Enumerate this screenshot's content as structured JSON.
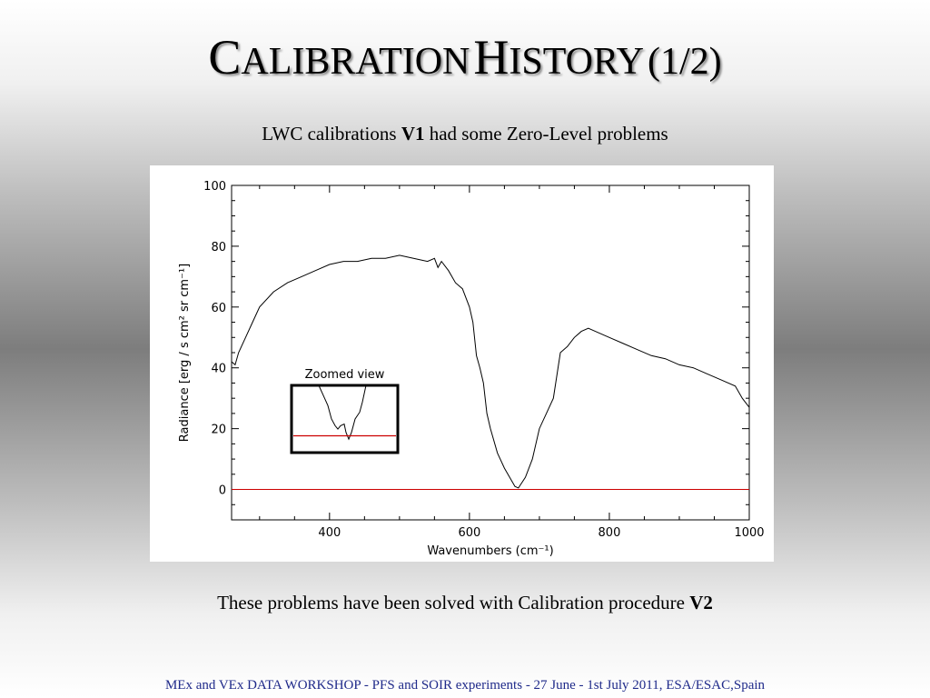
{
  "slide": {
    "title_part1_cap": "C",
    "title_part1_rest": "ALIBRATION",
    "title_part2_cap": "H",
    "title_part2_rest": "ISTORY",
    "title_page": "(1/2)",
    "subtitle_pre": "LWC calibrations",
    "subtitle_bold": "V1",
    "subtitle_post": "had some Zero-Level problems",
    "conclusion_pre": "These problems have been solved with Calibration procedure",
    "conclusion_bold": "V2",
    "footer": "MEx and VEx DATA WORKSHOP - PFS and SOIR experiments - 27 June - 1st July 2011, ESA/ESAC,Spain"
  },
  "chart_data": {
    "type": "line",
    "xlabel": "Wavenumbers (cm⁻¹)",
    "ylabel": "Radiance [erg / s cm² sr cm⁻¹]",
    "xlim": [
      260,
      1000
    ],
    "ylim": [
      -10,
      100
    ],
    "x_ticks": [
      400,
      600,
      800,
      1000
    ],
    "y_ticks": [
      0,
      20,
      40,
      60,
      80,
      100
    ],
    "grid": false,
    "series": [
      {
        "color": "#000000",
        "x": [
          260,
          265,
          270,
          280,
          290,
          300,
          320,
          340,
          360,
          380,
          400,
          420,
          440,
          460,
          480,
          500,
          520,
          540,
          550,
          555,
          560,
          570,
          580,
          590,
          600,
          605,
          610,
          615,
          620,
          625,
          630,
          640,
          650,
          660,
          665,
          670,
          680,
          690,
          700,
          710,
          720,
          730,
          740,
          750,
          760,
          770,
          780,
          800,
          820,
          840,
          860,
          880,
          900,
          920,
          940,
          960,
          980,
          990,
          1000
        ],
        "y": [
          42,
          41,
          45,
          50,
          55,
          60,
          65,
          68,
          70,
          72,
          74,
          75,
          75,
          76,
          76,
          77,
          76,
          75,
          76,
          73,
          75,
          72,
          68,
          66,
          60,
          55,
          44,
          40,
          35,
          25,
          20,
          12,
          7,
          3,
          1,
          0.5,
          4,
          10,
          20,
          25,
          30,
          45,
          47,
          50,
          52,
          53,
          52,
          50,
          48,
          46,
          44,
          43,
          41,
          40,
          38,
          36,
          34,
          30,
          27
        ]
      },
      {
        "color": "#cc0000",
        "x": [
          260,
          1000
        ],
        "y": [
          0,
          0
        ]
      }
    ],
    "inset": {
      "label": "Zoomed view",
      "x": [
        0,
        5,
        10,
        14,
        18,
        21,
        24,
        28,
        30,
        33,
        36,
        40,
        45,
        48,
        52
      ],
      "y": [
        0,
        3,
        6,
        10,
        12,
        13,
        12,
        11.5,
        14,
        16,
        14,
        10,
        8,
        5,
        0
      ],
      "baseline": 15
    }
  }
}
